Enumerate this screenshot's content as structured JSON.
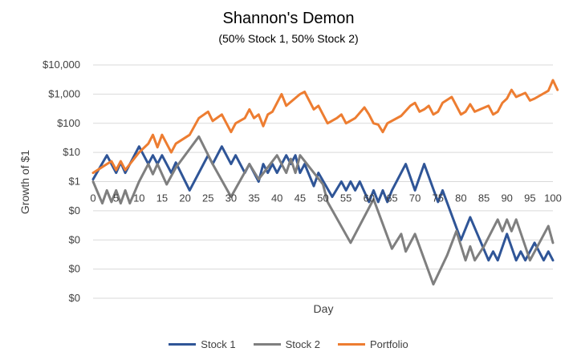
{
  "chart_data": {
    "type": "line",
    "title": "Shannon's Demon",
    "subtitle": "(50% Stock 1, 50% Stock 2)",
    "xlabel": "Day",
    "ylabel": "Growth of $1",
    "y_scale": "log",
    "ylim": [
      0.0001,
      10000
    ],
    "xlim": [
      0,
      100
    ],
    "y_tick_values": [
      0.0001,
      0.001,
      0.01,
      0.1,
      1,
      10,
      100,
      1000,
      10000
    ],
    "y_tick_labels": [
      "$0",
      "$0",
      "$0",
      "$0",
      "$1",
      "$10",
      "$100",
      "$1,000",
      "$10,000"
    ],
    "x_tick_values": [
      0,
      5,
      10,
      15,
      20,
      25,
      30,
      35,
      40,
      45,
      50,
      55,
      60,
      65,
      70,
      75,
      80,
      85,
      90,
      95,
      100
    ],
    "x_tick_labels": [
      "0",
      "5",
      "10",
      "15",
      "20",
      "25",
      "30",
      "35",
      "40",
      "45",
      "50",
      "55",
      "60",
      "65",
      "70",
      "75",
      "80",
      "85",
      "90",
      "95",
      "100"
    ],
    "grid": true,
    "legend_position": "bottom",
    "series": [
      {
        "name": "Stock 1",
        "color": "#2F5597",
        "points": [
          [
            0,
            1.2
          ],
          [
            3,
            8
          ],
          [
            5,
            2
          ],
          [
            6,
            4.5
          ],
          [
            7,
            2
          ],
          [
            10,
            16
          ],
          [
            12,
            4
          ],
          [
            13,
            8
          ],
          [
            14,
            4
          ],
          [
            15,
            8
          ],
          [
            17,
            2
          ],
          [
            18,
            4.5
          ],
          [
            21,
            0.5
          ],
          [
            25,
            8
          ],
          [
            26,
            4
          ],
          [
            28,
            16
          ],
          [
            30,
            4
          ],
          [
            31,
            8
          ],
          [
            33,
            2
          ],
          [
            34,
            4
          ],
          [
            36,
            1
          ],
          [
            37,
            4
          ],
          [
            38,
            2
          ],
          [
            39,
            4
          ],
          [
            40,
            2
          ],
          [
            42,
            8
          ],
          [
            43,
            4
          ],
          [
            44,
            8
          ],
          [
            45,
            2
          ],
          [
            46,
            4
          ],
          [
            48,
            0.7
          ],
          [
            49,
            2
          ],
          [
            52,
            0.3
          ],
          [
            54,
            1
          ],
          [
            55,
            0.5
          ],
          [
            56,
            1
          ],
          [
            57,
            0.5
          ],
          [
            58,
            1
          ],
          [
            60,
            0.2
          ],
          [
            61,
            0.5
          ],
          [
            62,
            0.2
          ],
          [
            63,
            0.5
          ],
          [
            64,
            0.2
          ],
          [
            65,
            0.5
          ],
          [
            68,
            4
          ],
          [
            70,
            0.5
          ],
          [
            72,
            4
          ],
          [
            75,
            0.2
          ],
          [
            76,
            0.5
          ],
          [
            80,
            0.01
          ],
          [
            82,
            0.06
          ],
          [
            86,
            0.002
          ],
          [
            87,
            0.004
          ],
          [
            88,
            0.002
          ],
          [
            90,
            0.016
          ],
          [
            92,
            0.002
          ],
          [
            93,
            0.004
          ],
          [
            94,
            0.002
          ],
          [
            96,
            0.008
          ],
          [
            98,
            0.002
          ],
          [
            99,
            0.004
          ],
          [
            100,
            0.002
          ]
        ]
      },
      {
        "name": "Stock 2",
        "color": "#7F7F7F",
        "points": [
          [
            0,
            1
          ],
          [
            2,
            0.18
          ],
          [
            3,
            0.5
          ],
          [
            4,
            0.2
          ],
          [
            5,
            0.5
          ],
          [
            6,
            0.18
          ],
          [
            7,
            0.5
          ],
          [
            8,
            0.18
          ],
          [
            10,
            1
          ],
          [
            12,
            4
          ],
          [
            13,
            1.8
          ],
          [
            14,
            4
          ],
          [
            16,
            0.8
          ],
          [
            18,
            3
          ],
          [
            23,
            35
          ],
          [
            26,
            4
          ],
          [
            30,
            0.3
          ],
          [
            34,
            4
          ],
          [
            36,
            1.2
          ],
          [
            40,
            8
          ],
          [
            42,
            2
          ],
          [
            43,
            6
          ],
          [
            44,
            2
          ],
          [
            45,
            8
          ],
          [
            50,
            0.8
          ],
          [
            51,
            0.2
          ],
          [
            56,
            0.008
          ],
          [
            61,
            0.25
          ],
          [
            65,
            0.005
          ],
          [
            67,
            0.016
          ],
          [
            68,
            0.004
          ],
          [
            70,
            0.016
          ],
          [
            74,
            0.0003
          ],
          [
            77,
            0.003
          ],
          [
            79,
            0.02
          ],
          [
            81,
            0.002
          ],
          [
            82,
            0.006
          ],
          [
            83,
            0.002
          ],
          [
            85,
            0.006
          ],
          [
            88,
            0.05
          ],
          [
            89,
            0.02
          ],
          [
            90,
            0.05
          ],
          [
            91,
            0.02
          ],
          [
            92,
            0.05
          ],
          [
            94,
            0.006
          ],
          [
            95,
            0.002
          ],
          [
            99,
            0.03
          ],
          [
            100,
            0.008
          ]
        ]
      },
      {
        "name": "Portfolio",
        "color": "#ED7D31",
        "points": [
          [
            0,
            2
          ],
          [
            3,
            4
          ],
          [
            4,
            5
          ],
          [
            5,
            2.5
          ],
          [
            6,
            5
          ],
          [
            7,
            2.5
          ],
          [
            10,
            10
          ],
          [
            12,
            20
          ],
          [
            13,
            40
          ],
          [
            14,
            15
          ],
          [
            15,
            40
          ],
          [
            17,
            10
          ],
          [
            18,
            20
          ],
          [
            21,
            40
          ],
          [
            23,
            150
          ],
          [
            25,
            250
          ],
          [
            26,
            120
          ],
          [
            28,
            200
          ],
          [
            30,
            50
          ],
          [
            31,
            100
          ],
          [
            33,
            150
          ],
          [
            34,
            300
          ],
          [
            35,
            150
          ],
          [
            36,
            200
          ],
          [
            37,
            80
          ],
          [
            38,
            200
          ],
          [
            39,
            250
          ],
          [
            41,
            1000
          ],
          [
            42,
            400
          ],
          [
            45,
            1000
          ],
          [
            46,
            1200
          ],
          [
            48,
            300
          ],
          [
            49,
            400
          ],
          [
            51,
            100
          ],
          [
            53,
            150
          ],
          [
            54,
            200
          ],
          [
            55,
            100
          ],
          [
            57,
            150
          ],
          [
            59,
            350
          ],
          [
            60,
            200
          ],
          [
            61,
            100
          ],
          [
            62,
            90
          ],
          [
            63,
            50
          ],
          [
            64,
            100
          ],
          [
            67,
            180
          ],
          [
            69,
            400
          ],
          [
            70,
            500
          ],
          [
            71,
            250
          ],
          [
            72,
            300
          ],
          [
            73,
            400
          ],
          [
            74,
            200
          ],
          [
            75,
            250
          ],
          [
            76,
            500
          ],
          [
            78,
            800
          ],
          [
            80,
            200
          ],
          [
            81,
            250
          ],
          [
            82,
            450
          ],
          [
            83,
            250
          ],
          [
            86,
            400
          ],
          [
            87,
            200
          ],
          [
            88,
            250
          ],
          [
            89,
            500
          ],
          [
            90,
            700
          ],
          [
            91,
            1400
          ],
          [
            92,
            800
          ],
          [
            94,
            1100
          ],
          [
            95,
            600
          ],
          [
            96,
            700
          ],
          [
            99,
            1300
          ],
          [
            100,
            3000
          ],
          [
            101,
            1400
          ]
        ]
      }
    ]
  }
}
